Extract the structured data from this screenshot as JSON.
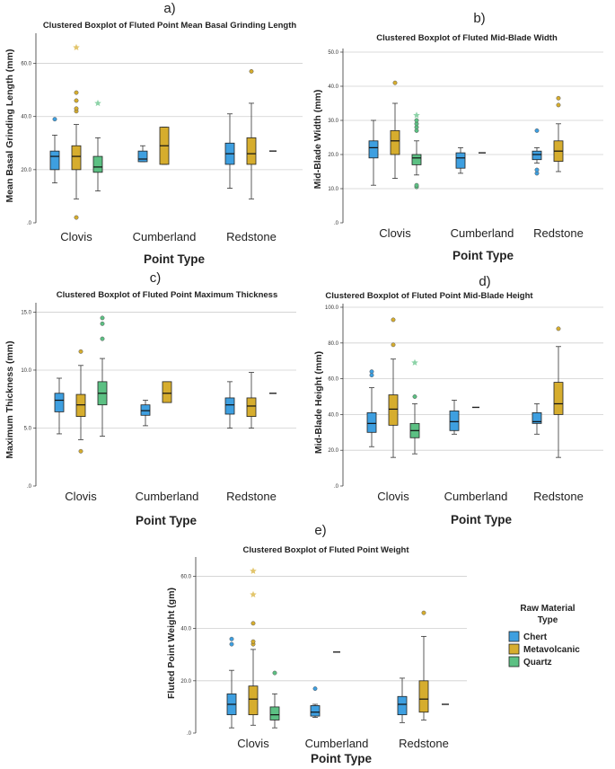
{
  "colors": {
    "Chert": "#3e9fe0",
    "Metavolcanic": "#d6ad2e",
    "Quartz": "#5cc083",
    "grid": "#cfcfcf",
    "axis": "#333333"
  },
  "legend": {
    "title_line1": "Raw Material",
    "title_line2": "Type",
    "items": [
      {
        "name": "Chert",
        "color": "#3e9fe0"
      },
      {
        "name": "Metavolcanic",
        "color": "#d6ad2e"
      },
      {
        "name": "Quartz",
        "color": "#5cc083"
      }
    ]
  },
  "chart_data": [
    {
      "id": "a",
      "letter": "a)",
      "type": "boxplot",
      "title": "Clustered Boxplot of Fluted Point Mean Basal Grinding Length",
      "xlabel": "Point Type",
      "ylabel": "Mean Basal Grinding Length (mm)",
      "categories": [
        "Clovis",
        "Cumberland",
        "Redstone"
      ],
      "ylim": [
        0,
        70
      ],
      "yticks": [
        0,
        20,
        40,
        60
      ],
      "yticklabels": [
        ".0",
        "20.0",
        "40.0",
        "60.0"
      ],
      "grid": [
        20,
        40,
        60
      ],
      "boxes": [
        {
          "category": "Clovis",
          "series": "Chert",
          "min": 15,
          "q1": 20,
          "median": 25,
          "q3": 27,
          "max": 33,
          "outliers": [
            39
          ],
          "extremes": []
        },
        {
          "category": "Clovis",
          "series": "Metavolcanic",
          "min": 9,
          "q1": 20,
          "median": 25,
          "q3": 29,
          "max": 37,
          "outliers": [
            2,
            42,
            43,
            46,
            49
          ],
          "extremes": [
            66
          ]
        },
        {
          "category": "Clovis",
          "series": "Quartz",
          "min": 12,
          "q1": 19,
          "median": 21,
          "q3": 25,
          "max": 32,
          "outliers": [],
          "extremes": [
            45
          ]
        },
        {
          "category": "Cumberland",
          "series": "Chert",
          "min": 23,
          "q1": 23,
          "median": 24,
          "q3": 27,
          "max": 29,
          "outliers": [],
          "extremes": []
        },
        {
          "category": "Cumberland",
          "series": "Metavolcanic",
          "min": 22,
          "q1": 22,
          "median": 29,
          "q3": 36,
          "max": 36,
          "outliers": [],
          "extremes": []
        },
        {
          "category": "Redstone",
          "series": "Chert",
          "min": 13,
          "q1": 22,
          "median": 26,
          "q3": 30,
          "max": 41,
          "outliers": [],
          "extremes": []
        },
        {
          "category": "Redstone",
          "series": "Metavolcanic",
          "min": 9,
          "q1": 22,
          "median": 26,
          "q3": 32,
          "max": 45,
          "outliers": [
            57
          ],
          "extremes": []
        },
        {
          "category": "Redstone",
          "series": "Quartz",
          "single": 27
        }
      ]
    },
    {
      "id": "b",
      "letter": "b)",
      "type": "boxplot",
      "title": "Clustered Boxplot of Fluted Mid-Blade Width",
      "xlabel": "Point Type",
      "ylabel": "Mid-Blade Width (mm)",
      "categories": [
        "Clovis",
        "Cumberland",
        "Redstone"
      ],
      "ylim": [
        0,
        50
      ],
      "yticks": [
        0,
        10,
        20,
        30,
        40,
        50
      ],
      "yticklabels": [
        ".0",
        "10.0",
        "20.0",
        "30.0",
        "40.0",
        "50.0"
      ],
      "grid": [
        10,
        20,
        30,
        40,
        50
      ],
      "boxes": [
        {
          "category": "Clovis",
          "series": "Chert",
          "min": 11,
          "q1": 19,
          "median": 22,
          "q3": 24,
          "max": 30,
          "outliers": [],
          "extremes": []
        },
        {
          "category": "Clovis",
          "series": "Metavolcanic",
          "min": 13,
          "q1": 20,
          "median": 24,
          "q3": 27,
          "max": 35,
          "outliers": [
            41
          ],
          "extremes": []
        },
        {
          "category": "Clovis",
          "series": "Quartz",
          "min": 14,
          "q1": 17,
          "median": 19,
          "q3": 20,
          "max": 24,
          "outliers": [
            10.5,
            11,
            27,
            28,
            29,
            30
          ],
          "extremes": [
            31.5
          ]
        },
        {
          "category": "Cumberland",
          "series": "Chert",
          "min": 14.5,
          "q1": 16,
          "median": 19,
          "q3": 20.5,
          "max": 22,
          "outliers": [],
          "extremes": []
        },
        {
          "category": "Cumberland",
          "series": "Metavolcanic",
          "single": 20.5
        },
        {
          "category": "Redstone",
          "series": "Chert",
          "min": 17.5,
          "q1": 18.5,
          "median": 20,
          "q3": 21,
          "max": 22,
          "outliers": [
            14.5,
            15.5,
            27
          ],
          "extremes": []
        },
        {
          "category": "Redstone",
          "series": "Metavolcanic",
          "min": 15,
          "q1": 18,
          "median": 21,
          "q3": 24,
          "max": 29,
          "outliers": [
            34.5,
            36.5
          ],
          "extremes": []
        }
      ]
    },
    {
      "id": "c",
      "letter": "c)",
      "type": "boxplot",
      "title": "Clustered Boxplot of Fluted Point Maximum Thickness",
      "xlabel": "Point Type",
      "ylabel": "Maximum Thickness (mm)",
      "categories": [
        "Clovis",
        "Cumberland",
        "Redstone"
      ],
      "ylim": [
        0,
        15.5
      ],
      "yticks": [
        0,
        5,
        10,
        15
      ],
      "yticklabels": [
        ".0",
        "5.0",
        "10.0",
        "15.0"
      ],
      "grid": [
        5,
        10,
        15
      ],
      "boxes": [
        {
          "category": "Clovis",
          "series": "Chert",
          "min": 4.5,
          "q1": 6.4,
          "median": 7.4,
          "q3": 8,
          "max": 9.3,
          "outliers": [],
          "extremes": []
        },
        {
          "category": "Clovis",
          "series": "Metavolcanic",
          "min": 4,
          "q1": 6,
          "median": 7,
          "q3": 7.9,
          "max": 10.4,
          "outliers": [
            3,
            11.6
          ],
          "extremes": []
        },
        {
          "category": "Clovis",
          "series": "Quartz",
          "min": 4.3,
          "q1": 7,
          "median": 8,
          "q3": 9,
          "max": 11,
          "outliers": [
            12.7,
            14,
            14.5
          ],
          "extremes": []
        },
        {
          "category": "Cumberland",
          "series": "Chert",
          "min": 5.2,
          "q1": 6.1,
          "median": 6.5,
          "q3": 7,
          "max": 7.4,
          "outliers": [],
          "extremes": []
        },
        {
          "category": "Cumberland",
          "series": "Metavolcanic",
          "min": 7.2,
          "q1": 7.2,
          "median": 8,
          "q3": 9,
          "max": 9,
          "outliers": [],
          "extremes": []
        },
        {
          "category": "Redstone",
          "series": "Chert",
          "min": 5,
          "q1": 6.2,
          "median": 7,
          "q3": 7.6,
          "max": 9,
          "outliers": [],
          "extremes": []
        },
        {
          "category": "Redstone",
          "series": "Metavolcanic",
          "min": 5,
          "q1": 6,
          "median": 6.9,
          "q3": 7.6,
          "max": 9.8,
          "outliers": [],
          "extremes": []
        },
        {
          "category": "Redstone",
          "series": "Quartz",
          "single": 8
        }
      ]
    },
    {
      "id": "d",
      "letter": "d)",
      "type": "boxplot",
      "title": "Clustered Boxplot of Fluted Point Mid-Blade Height",
      "xlabel": "Point Type",
      "ylabel": "Mid-Blade Height (mm)",
      "categories": [
        "Clovis",
        "Cumberland",
        "Redstone"
      ],
      "ylim": [
        0,
        100
      ],
      "yticks": [
        0,
        20,
        40,
        60,
        80,
        100
      ],
      "yticklabels": [
        ".0",
        "20.0",
        "40.0",
        "60.0",
        "80.0",
        "100.0"
      ],
      "grid": [
        20,
        40,
        60,
        80,
        100
      ],
      "boxes": [
        {
          "category": "Clovis",
          "series": "Chert",
          "min": 22,
          "q1": 30,
          "median": 35,
          "q3": 41,
          "max": 55,
          "outliers": [
            62,
            64
          ],
          "extremes": []
        },
        {
          "category": "Clovis",
          "series": "Metavolcanic",
          "min": 16,
          "q1": 34,
          "median": 43,
          "q3": 51,
          "max": 71,
          "outliers": [
            79,
            93
          ],
          "extremes": []
        },
        {
          "category": "Clovis",
          "series": "Quartz",
          "min": 18,
          "q1": 27,
          "median": 31,
          "q3": 35,
          "max": 46,
          "outliers": [
            50
          ],
          "extremes": [
            69
          ]
        },
        {
          "category": "Cumberland",
          "series": "Chert",
          "min": 29,
          "q1": 31,
          "median": 36,
          "q3": 42,
          "max": 48,
          "outliers": [],
          "extremes": []
        },
        {
          "category": "Cumberland",
          "series": "Metavolcanic",
          "single": 44
        },
        {
          "category": "Redstone",
          "series": "Chert",
          "min": 29,
          "q1": 35,
          "median": 36,
          "q3": 41,
          "max": 46,
          "outliers": [],
          "extremes": []
        },
        {
          "category": "Redstone",
          "series": "Metavolcanic",
          "min": 16,
          "q1": 40,
          "median": 46,
          "q3": 58,
          "max": 78,
          "outliers": [
            88
          ],
          "extremes": []
        }
      ]
    },
    {
      "id": "e",
      "letter": "e)",
      "type": "boxplot",
      "title": "Clustered Boxplot of Fluted Point Weight",
      "xlabel": "Point Type",
      "ylabel": "Fluted Point Weight (gm)",
      "categories": [
        "Clovis",
        "Cumberland",
        "Redstone"
      ],
      "ylim": [
        0,
        66
      ],
      "yticks": [
        0,
        20,
        40,
        60
      ],
      "yticklabels": [
        ".0",
        "20.0",
        "40.0",
        "60.0"
      ],
      "grid": [
        20,
        40,
        60
      ],
      "boxes": [
        {
          "category": "Clovis",
          "series": "Chert",
          "min": 2,
          "q1": 7,
          "median": 11,
          "q3": 15,
          "max": 24,
          "outliers": [
            34,
            36
          ],
          "extremes": []
        },
        {
          "category": "Clovis",
          "series": "Metavolcanic",
          "min": 3,
          "q1": 7,
          "median": 13,
          "q3": 18,
          "max": 32,
          "outliers": [
            34,
            35,
            42
          ],
          "extremes": [
            53,
            62
          ]
        },
        {
          "category": "Clovis",
          "series": "Quartz",
          "min": 2,
          "q1": 5,
          "median": 7,
          "q3": 10,
          "max": 15,
          "outliers": [
            23
          ],
          "extremes": []
        },
        {
          "category": "Cumberland",
          "series": "Chert",
          "min": 6,
          "q1": 6.5,
          "median": 8,
          "q3": 10.5,
          "max": 11,
          "outliers": [
            17
          ],
          "extremes": []
        },
        {
          "category": "Cumberland",
          "series": "Metavolcanic",
          "single": 31
        },
        {
          "category": "Redstone",
          "series": "Chert",
          "min": 4,
          "q1": 7,
          "median": 11,
          "q3": 14,
          "max": 21,
          "outliers": [],
          "extremes": []
        },
        {
          "category": "Redstone",
          "series": "Metavolcanic",
          "min": 5,
          "q1": 8,
          "median": 13,
          "q3": 20,
          "max": 37,
          "outliers": [
            46
          ],
          "extremes": []
        },
        {
          "category": "Redstone",
          "series": "Quartz",
          "single": 11
        }
      ]
    }
  ]
}
